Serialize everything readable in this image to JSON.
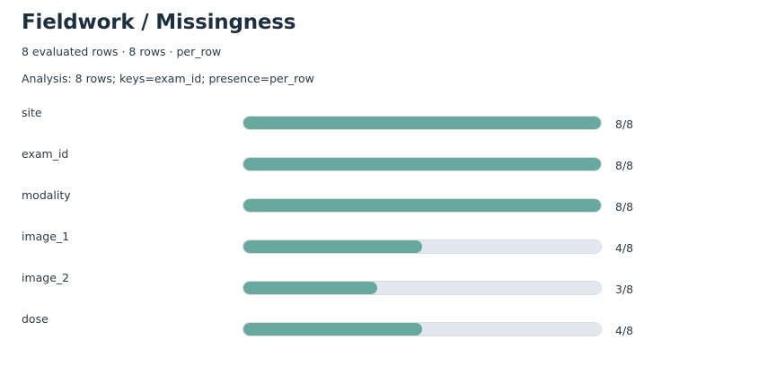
{
  "header": {
    "title": "Fieldwork / Missingness",
    "subtitle": "8 evaluated rows · 8 rows · per_row",
    "analysis": "Analysis: 8 rows; keys=exam_id; presence=per_row"
  },
  "colors": {
    "bar_fill": "#69a89e",
    "bar_track": "#e2e8ee",
    "title": "#1e2f40"
  },
  "chart_data": {
    "type": "bar",
    "orientation": "horizontal",
    "categories": [
      "site",
      "exam_id",
      "modality",
      "image_1",
      "image_2",
      "dose"
    ],
    "values": [
      8,
      8,
      8,
      4,
      3,
      4
    ],
    "total": 8,
    "labels": [
      "8/8",
      "8/8",
      "8/8",
      "4/8",
      "3/8",
      "4/8"
    ],
    "xlim": [
      0,
      8
    ],
    "grid": false,
    "legend": "none"
  }
}
